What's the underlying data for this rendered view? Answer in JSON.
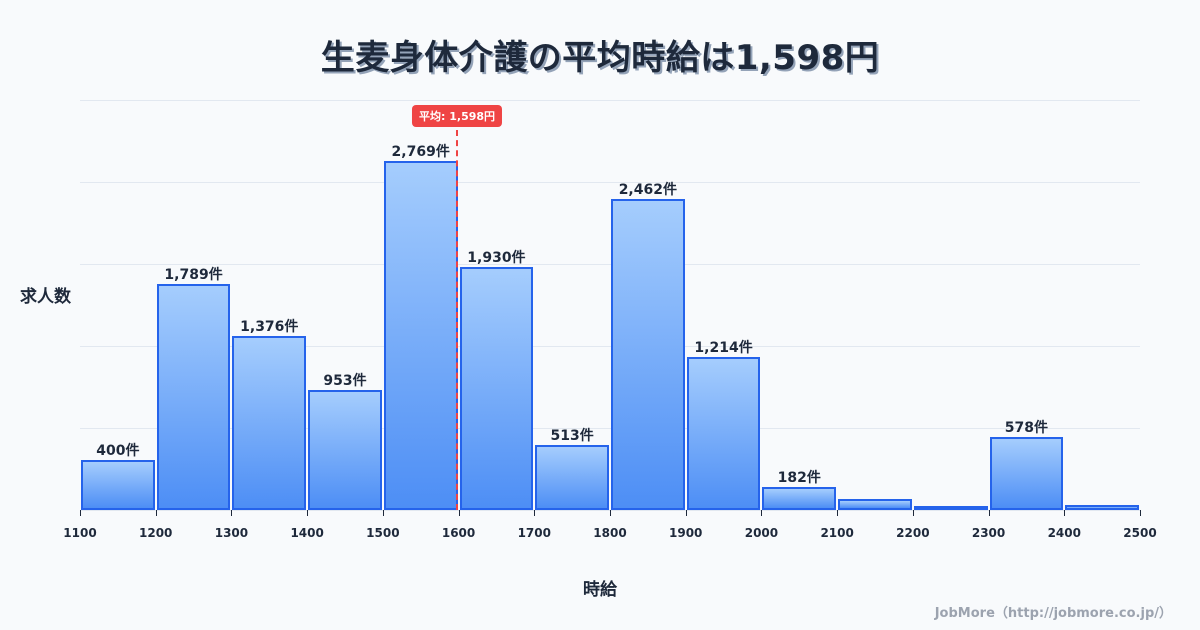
{
  "title": "生麦身体介護の平均時給は1,598円",
  "y_axis_label": "求人数",
  "x_axis_label": "時給",
  "mean": {
    "value": 1598,
    "label": "平均: 1,598円",
    "color": "#ef4444"
  },
  "credit": "JobMore（http://jobmore.co.jp/）",
  "colors": {
    "bar_border": "#2563eb",
    "bar_top": "#a5cdfd",
    "bar_bottom": "#4d8ef5",
    "text": "#1e293b",
    "grid": "#e2e8f0",
    "background": "#f8fafc"
  },
  "chart_data": {
    "type": "bar",
    "title": "生麦身体介護の平均時給は1,598円",
    "xlabel": "時給",
    "ylabel": "求人数",
    "bins": [
      [
        1100,
        1200
      ],
      [
        1200,
        1300
      ],
      [
        1300,
        1400
      ],
      [
        1400,
        1500
      ],
      [
        1500,
        1600
      ],
      [
        1600,
        1700
      ],
      [
        1700,
        1800
      ],
      [
        1800,
        1900
      ],
      [
        1900,
        2000
      ],
      [
        2000,
        2100
      ],
      [
        2100,
        2200
      ],
      [
        2200,
        2300
      ],
      [
        2300,
        2400
      ],
      [
        2400,
        2500
      ]
    ],
    "categories": [
      "1100-1200",
      "1200-1300",
      "1300-1400",
      "1400-1500",
      "1500-1600",
      "1600-1700",
      "1700-1800",
      "1800-1900",
      "1900-2000",
      "2000-2100",
      "2100-2200",
      "2200-2300",
      "2300-2400",
      "2400-2500"
    ],
    "values": [
      400,
      1789,
      1376,
      953,
      2769,
      1930,
      513,
      2462,
      1214,
      182,
      90,
      25,
      578,
      40
    ],
    "value_labels": [
      "400件",
      "1,789件",
      "1,376件",
      "953件",
      "2,769件",
      "1,930件",
      "513件",
      "2,462件",
      "1,214件",
      "182件",
      "",
      "",
      "578件",
      ""
    ],
    "x_ticks": [
      1100,
      1200,
      1300,
      1400,
      1500,
      1600,
      1700,
      1800,
      1900,
      2000,
      2100,
      2200,
      2300,
      2400,
      2500
    ],
    "xlim": [
      1100,
      2500
    ],
    "ylim": [
      0,
      3250
    ],
    "grid": true,
    "mean_line": 1598,
    "legend": null
  }
}
